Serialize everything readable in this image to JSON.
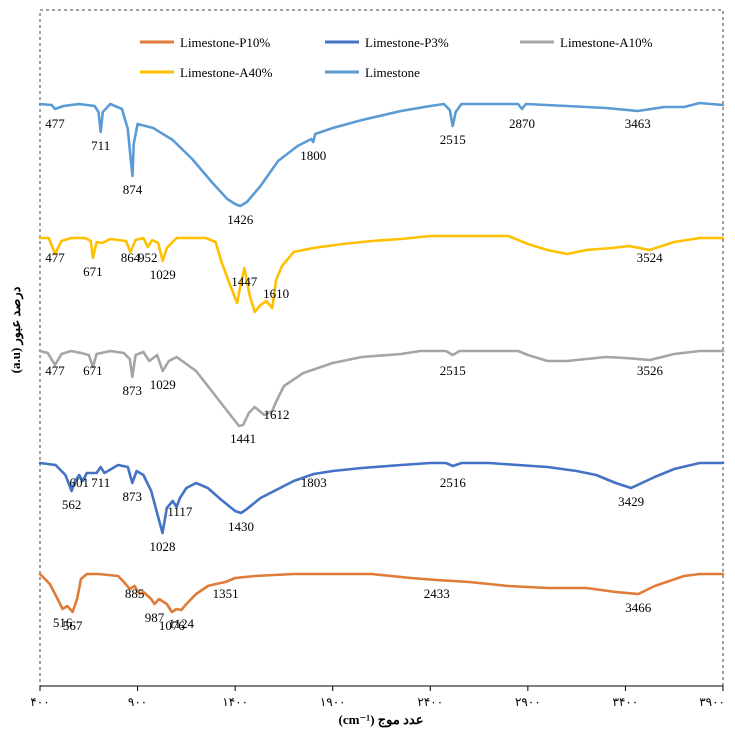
{
  "chart_data": {
    "type": "line",
    "title": "",
    "xlabel": "عدد موج (cm⁻¹)",
    "ylabel": "درصد عبور (a.u)",
    "xlim": [
      400,
      3900
    ],
    "x_ticks": [
      400,
      900,
      1400,
      1900,
      2400,
      2900,
      3400,
      3900
    ],
    "x_tick_labels": [
      "۴۰۰",
      "۹۰۰",
      "۱۴۰۰",
      "۱۹۰۰",
      "۲۴۰۰",
      "۲۹۰۰",
      "۳۴۰۰",
      "۳۹۰۰"
    ],
    "grid": false,
    "legend": {
      "placement": "top",
      "entries": [
        {
          "name": "Limestone-P10%",
          "color": "#e07b39"
        },
        {
          "name": "Limestone-P3%",
          "color": "#4472c4"
        },
        {
          "name": "Limestone-A10%",
          "color": "#a5a5a5"
        },
        {
          "name": "Limestone-A40%",
          "color": "#ffc000"
        },
        {
          "name": "Limestone",
          "color": "#5b9bd5"
        }
      ]
    },
    "series": [
      {
        "name": "Limestone",
        "color": "#5b9bd5",
        "baseline": 0,
        "points": [
          [
            400,
            0
          ],
          [
            460,
            -1
          ],
          [
            477,
            -5
          ],
          [
            520,
            -2
          ],
          [
            600,
            0
          ],
          [
            680,
            -2
          ],
          [
            700,
            -8
          ],
          [
            711,
            -28
          ],
          [
            722,
            -8
          ],
          [
            760,
            0
          ],
          [
            820,
            -5
          ],
          [
            850,
            -25
          ],
          [
            865,
            -55
          ],
          [
            874,
            -72
          ],
          [
            880,
            -40
          ],
          [
            900,
            -20
          ],
          [
            980,
            -24
          ],
          [
            1080,
            -36
          ],
          [
            1180,
            -55
          ],
          [
            1280,
            -78
          ],
          [
            1360,
            -95
          ],
          [
            1400,
            -100
          ],
          [
            1426,
            -102
          ],
          [
            1460,
            -98
          ],
          [
            1530,
            -82
          ],
          [
            1620,
            -57
          ],
          [
            1720,
            -42
          ],
          [
            1790,
            -35
          ],
          [
            1800,
            -38
          ],
          [
            1810,
            -30
          ],
          [
            1900,
            -24
          ],
          [
            2050,
            -16
          ],
          [
            2250,
            -7
          ],
          [
            2400,
            -2
          ],
          [
            2470,
            0
          ],
          [
            2500,
            -6
          ],
          [
            2515,
            -22
          ],
          [
            2530,
            -8
          ],
          [
            2560,
            0
          ],
          [
            2700,
            0
          ],
          [
            2850,
            0
          ],
          [
            2870,
            -5
          ],
          [
            2890,
            0
          ],
          [
            3100,
            -2
          ],
          [
            3300,
            -4
          ],
          [
            3463,
            -7
          ],
          [
            3600,
            -3
          ],
          [
            3700,
            -3
          ],
          [
            3780,
            1
          ],
          [
            3900,
            -1
          ]
        ],
        "peak_labels": [
          {
            "x": 477,
            "label": "477"
          },
          {
            "x": 711,
            "label": "711"
          },
          {
            "x": 874,
            "label": "874"
          },
          {
            "x": 1426,
            "label": "1426"
          },
          {
            "x": 1800,
            "label": "1800"
          },
          {
            "x": 2515,
            "label": "2515"
          },
          {
            "x": 2870,
            "label": "2870"
          },
          {
            "x": 3463,
            "label": "3463"
          }
        ]
      },
      {
        "name": "Limestone-A40%",
        "color": "#ffc000",
        "baseline": 0,
        "points": [
          [
            400,
            0
          ],
          [
            445,
            0
          ],
          [
            477,
            -16
          ],
          [
            510,
            -3
          ],
          [
            560,
            0
          ],
          [
            630,
            0
          ],
          [
            660,
            -3
          ],
          [
            671,
            -20
          ],
          [
            690,
            -4
          ],
          [
            720,
            -5
          ],
          [
            760,
            -1
          ],
          [
            800,
            -2
          ],
          [
            840,
            -3
          ],
          [
            864,
            -14
          ],
          [
            890,
            -2
          ],
          [
            930,
            0
          ],
          [
            952,
            -9
          ],
          [
            975,
            -2
          ],
          [
            1005,
            -5
          ],
          [
            1029,
            -23
          ],
          [
            1050,
            -10
          ],
          [
            1100,
            0
          ],
          [
            1200,
            0
          ],
          [
            1250,
            0
          ],
          [
            1300,
            -4
          ],
          [
            1330,
            -24
          ],
          [
            1380,
            -50
          ],
          [
            1410,
            -65
          ],
          [
            1425,
            -50
          ],
          [
            1447,
            -30
          ],
          [
            1475,
            -58
          ],
          [
            1500,
            -74
          ],
          [
            1530,
            -67
          ],
          [
            1560,
            -63
          ],
          [
            1590,
            -70
          ],
          [
            1610,
            -42
          ],
          [
            1640,
            -28
          ],
          [
            1700,
            -14
          ],
          [
            1800,
            -10
          ],
          [
            1950,
            -6
          ],
          [
            2100,
            -3
          ],
          [
            2250,
            -1
          ],
          [
            2400,
            2
          ],
          [
            2600,
            2
          ],
          [
            2800,
            2
          ],
          [
            2900,
            -6
          ],
          [
            3000,
            -12
          ],
          [
            3100,
            -16
          ],
          [
            3200,
            -12
          ],
          [
            3330,
            -10
          ],
          [
            3420,
            -8
          ],
          [
            3524,
            -12
          ],
          [
            3650,
            -4
          ],
          [
            3780,
            0
          ],
          [
            3900,
            0
          ]
        ],
        "peak_labels": [
          {
            "x": 477,
            "label": "477"
          },
          {
            "x": 671,
            "label": "671"
          },
          {
            "x": 864,
            "label": "864"
          },
          {
            "x": 952,
            "label": "952"
          },
          {
            "x": 1029,
            "label": "1029"
          },
          {
            "x": 1447,
            "label": "1447"
          },
          {
            "x": 1610,
            "label": "1610"
          },
          {
            "x": 3524,
            "label": "3524"
          }
        ]
      },
      {
        "name": "Limestone-A10%",
        "color": "#a5a5a5",
        "baseline": 0,
        "points": [
          [
            400,
            0
          ],
          [
            440,
            -2
          ],
          [
            477,
            -14
          ],
          [
            510,
            -3
          ],
          [
            560,
            0
          ],
          [
            610,
            -2
          ],
          [
            650,
            -4
          ],
          [
            671,
            -16
          ],
          [
            690,
            -3
          ],
          [
            760,
            0
          ],
          [
            830,
            -2
          ],
          [
            860,
            -8
          ],
          [
            873,
            -26
          ],
          [
            890,
            -4
          ],
          [
            930,
            -1
          ],
          [
            960,
            -10
          ],
          [
            1000,
            -4
          ],
          [
            1029,
            -20
          ],
          [
            1060,
            -10
          ],
          [
            1100,
            -6
          ],
          [
            1200,
            -20
          ],
          [
            1300,
            -45
          ],
          [
            1380,
            -65
          ],
          [
            1420,
            -75
          ],
          [
            1441,
            -74
          ],
          [
            1470,
            -62
          ],
          [
            1500,
            -56
          ],
          [
            1550,
            -64
          ],
          [
            1590,
            -60
          ],
          [
            1612,
            -50
          ],
          [
            1650,
            -35
          ],
          [
            1750,
            -22
          ],
          [
            1900,
            -12
          ],
          [
            2050,
            -6
          ],
          [
            2250,
            -3
          ],
          [
            2350,
            0
          ],
          [
            2480,
            0
          ],
          [
            2515,
            -4
          ],
          [
            2550,
            0
          ],
          [
            2700,
            0
          ],
          [
            2850,
            0
          ],
          [
            2900,
            -4
          ],
          [
            3000,
            -10
          ],
          [
            3100,
            -10
          ],
          [
            3200,
            -8
          ],
          [
            3300,
            -6
          ],
          [
            3400,
            -7
          ],
          [
            3526,
            -9
          ],
          [
            3650,
            -3
          ],
          [
            3780,
            0
          ],
          [
            3900,
            0
          ]
        ],
        "peak_labels": [
          {
            "x": 477,
            "label": "477"
          },
          {
            "x": 671,
            "label": "671"
          },
          {
            "x": 873,
            "label": "873"
          },
          {
            "x": 1029,
            "label": "1029"
          },
          {
            "x": 1441,
            "label": "1441"
          },
          {
            "x": 1612,
            "label": "1612"
          },
          {
            "x": 2515,
            "label": "2515"
          },
          {
            "x": 3526,
            "label": "3526"
          }
        ]
      },
      {
        "name": "Limestone-P3%",
        "color": "#4472c4",
        "baseline": 0,
        "points": [
          [
            400,
            0
          ],
          [
            480,
            -2
          ],
          [
            530,
            -12
          ],
          [
            562,
            -28
          ],
          [
            580,
            -18
          ],
          [
            601,
            -12
          ],
          [
            620,
            -18
          ],
          [
            640,
            -10
          ],
          [
            690,
            -10
          ],
          [
            711,
            -4
          ],
          [
            730,
            -10
          ],
          [
            800,
            -2
          ],
          [
            850,
            -4
          ],
          [
            873,
            -20
          ],
          [
            895,
            -8
          ],
          [
            930,
            -12
          ],
          [
            970,
            -28
          ],
          [
            1000,
            -50
          ],
          [
            1028,
            -70
          ],
          [
            1050,
            -45
          ],
          [
            1080,
            -38
          ],
          [
            1100,
            -44
          ],
          [
            1117,
            -35
          ],
          [
            1150,
            -25
          ],
          [
            1200,
            -20
          ],
          [
            1260,
            -25
          ],
          [
            1330,
            -37
          ],
          [
            1400,
            -48
          ],
          [
            1430,
            -50
          ],
          [
            1460,
            -46
          ],
          [
            1530,
            -35
          ],
          [
            1600,
            -28
          ],
          [
            1700,
            -18
          ],
          [
            1803,
            -11
          ],
          [
            1900,
            -8
          ],
          [
            2050,
            -5
          ],
          [
            2250,
            -2
          ],
          [
            2400,
            0
          ],
          [
            2480,
            0
          ],
          [
            2516,
            -3
          ],
          [
            2560,
            0
          ],
          [
            2700,
            0
          ],
          [
            2850,
            -2
          ],
          [
            3000,
            -4
          ],
          [
            3150,
            -8
          ],
          [
            3250,
            -12
          ],
          [
            3350,
            -20
          ],
          [
            3429,
            -25
          ],
          [
            3550,
            -14
          ],
          [
            3650,
            -6
          ],
          [
            3780,
            0
          ],
          [
            3900,
            0
          ]
        ],
        "peak_labels": [
          {
            "x": 562,
            "label": "562"
          },
          {
            "x": 601,
            "label": "601"
          },
          {
            "x": 711,
            "label": "711"
          },
          {
            "x": 873,
            "label": "873"
          },
          {
            "x": 1028,
            "label": "1028"
          },
          {
            "x": 1117,
            "label": "1117"
          },
          {
            "x": 1430,
            "label": "1430"
          },
          {
            "x": 1803,
            "label": "1803"
          },
          {
            "x": 2516,
            "label": "2516"
          },
          {
            "x": 3429,
            "label": "3429"
          }
        ]
      },
      {
        "name": "Limestone-P10%",
        "color": "#e07b39",
        "baseline": 0,
        "points": [
          [
            400,
            0
          ],
          [
            450,
            -10
          ],
          [
            490,
            -25
          ],
          [
            516,
            -35
          ],
          [
            540,
            -32
          ],
          [
            567,
            -38
          ],
          [
            590,
            -25
          ],
          [
            610,
            -5
          ],
          [
            640,
            0
          ],
          [
            700,
            0
          ],
          [
            800,
            -2
          ],
          [
            830,
            -8
          ],
          [
            860,
            -15
          ],
          [
            885,
            -12
          ],
          [
            910,
            -20
          ],
          [
            930,
            -18
          ],
          [
            970,
            -25
          ],
          [
            987,
            -30
          ],
          [
            1010,
            -25
          ],
          [
            1050,
            -30
          ],
          [
            1076,
            -38
          ],
          [
            1100,
            -35
          ],
          [
            1124,
            -36
          ],
          [
            1150,
            -30
          ],
          [
            1200,
            -20
          ],
          [
            1260,
            -12
          ],
          [
            1300,
            -10
          ],
          [
            1351,
            -8
          ],
          [
            1400,
            -4
          ],
          [
            1500,
            -2
          ],
          [
            1700,
            0
          ],
          [
            1900,
            0
          ],
          [
            2100,
            0
          ],
          [
            2300,
            -4
          ],
          [
            2433,
            -6
          ],
          [
            2600,
            -8
          ],
          [
            2800,
            -12
          ],
          [
            3000,
            -14
          ],
          [
            3200,
            -14
          ],
          [
            3350,
            -18
          ],
          [
            3466,
            -20
          ],
          [
            3550,
            -12
          ],
          [
            3700,
            -2
          ],
          [
            3780,
            0
          ],
          [
            3900,
            0
          ]
        ],
        "peak_labels": [
          {
            "x": 516,
            "label": "516"
          },
          {
            "x": 567,
            "label": "567"
          },
          {
            "x": 885,
            "label": "885"
          },
          {
            "x": 987,
            "label": "987"
          },
          {
            "x": 1076,
            "label": "1076"
          },
          {
            "x": 1124,
            "label": "1124"
          },
          {
            "x": 1351,
            "label": "1351"
          },
          {
            "x": 2433,
            "label": "2433"
          },
          {
            "x": 3466,
            "label": "3466"
          }
        ]
      }
    ]
  }
}
